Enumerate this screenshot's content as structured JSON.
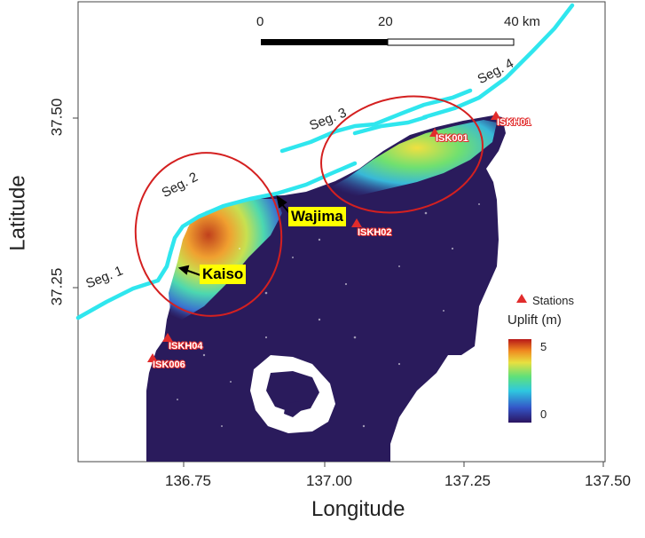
{
  "axes": {
    "xlabel": "Longitude",
    "ylabel": "Latitude",
    "x_ticks": [
      "136.75",
      "137.00",
      "137.25",
      "137.50"
    ],
    "y_ticks": [
      "37.50",
      "37.25"
    ]
  },
  "scalebar": {
    "ticks": [
      "0",
      "20",
      "40 km"
    ]
  },
  "fault_segments": [
    "Seg. 1",
    "Seg. 2",
    "Seg. 3",
    "Seg. 4"
  ],
  "stations": [
    "ISKH01",
    "ISK001",
    "ISKH02",
    "ISKH04",
    "ISK006"
  ],
  "callouts": [
    "Wajima",
    "Kaiso"
  ],
  "legend": {
    "stations_label": "Stations",
    "colorbar_title": "Uplift (m)",
    "colorbar_max": "5",
    "colorbar_min": "0"
  },
  "colors": {
    "fault": "#2fe6ee",
    "ellipse": "#d42020",
    "station_marker": "#e12c2c",
    "land": "#2a1b5c",
    "callout_bg": "#ffff00"
  }
}
